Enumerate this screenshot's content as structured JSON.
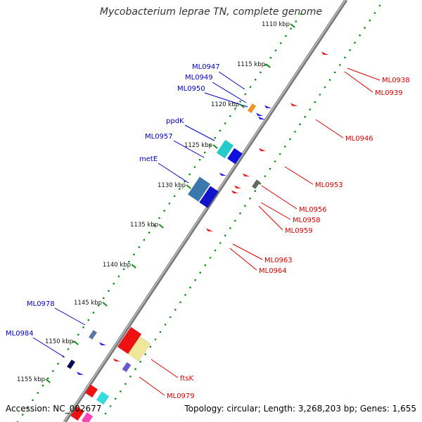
{
  "title": "Mycobacterium leprae TN, complete genome",
  "footer": {
    "accession": "Accession: NC_002677",
    "topology": "Topology: circular; Length: 3,268,203 bp; Genes: 1,655"
  },
  "colors": {
    "backbone": "#7f7f7f",
    "dots": "#138d13",
    "forward_label": "#0000cc",
    "reverse_label": "#dd0000"
  },
  "ticks": [
    {
      "label": "1110 kbp"
    },
    {
      "label": "1115 kbp"
    },
    {
      "label": "1120 kbp"
    },
    {
      "label": "1125 kbp"
    },
    {
      "label": "1130 kbp"
    },
    {
      "label": "1135 kbp"
    },
    {
      "label": "1140 kbp"
    },
    {
      "label": "1145 kbp"
    },
    {
      "label": "1150 kbp"
    },
    {
      "label": "1155 kbp"
    }
  ],
  "forward_genes": [
    {
      "label": "ML0947"
    },
    {
      "label": "ML0949"
    },
    {
      "label": "ML0950"
    },
    {
      "label": "ppdK"
    },
    {
      "label": "ML0957"
    },
    {
      "label": "metE"
    },
    {
      "label": "ML0978"
    },
    {
      "label": "ML0984"
    }
  ],
  "reverse_genes": [
    {
      "label": "ML0938"
    },
    {
      "label": "ML0939"
    },
    {
      "label": "ML0946"
    },
    {
      "label": "ML0953"
    },
    {
      "label": "ML0956"
    },
    {
      "label": "ML0958"
    },
    {
      "label": "ML0959"
    },
    {
      "label": "ML0963"
    },
    {
      "label": "ML0964"
    },
    {
      "label": "ftsK"
    },
    {
      "label": "ML0979"
    }
  ]
}
